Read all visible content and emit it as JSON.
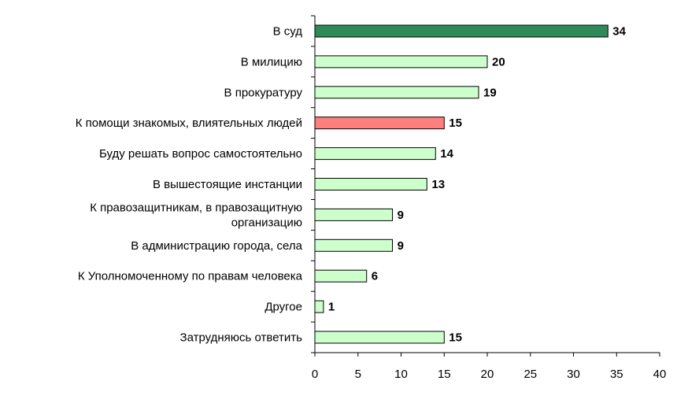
{
  "chart_data": {
    "type": "bar",
    "orientation": "horizontal",
    "title": "",
    "xlabel": "",
    "ylabel": "",
    "categories": [
      [
        "В суд"
      ],
      [
        "В милицию"
      ],
      [
        "В прокуратуру"
      ],
      [
        "К помощи знакомых, влиятельных людей"
      ],
      [
        "Буду решать вопрос самостоятельно"
      ],
      [
        "В вышестоящие инстанции"
      ],
      [
        "К правозащитникам, в правозащитную",
        "организацию"
      ],
      [
        "В администрацию города, села"
      ],
      [
        "К Уполномоченному по правам человека"
      ],
      [
        "Другое"
      ],
      [
        "Затрудняюсь ответить"
      ]
    ],
    "values": [
      34,
      20,
      19,
      15,
      14,
      13,
      9,
      9,
      6,
      1,
      15
    ],
    "bar_colors": [
      "#2e8b57",
      "#ccffcc",
      "#ccffcc",
      "#ff7f7f",
      "#ccffcc",
      "#ccffcc",
      "#ccffcc",
      "#ccffcc",
      "#ccffcc",
      "#ccffcc",
      "#ccffcc"
    ],
    "xlim": [
      0,
      40
    ],
    "xticks": [
      0,
      5,
      10,
      15,
      20,
      25,
      30,
      35,
      40
    ],
    "grid": false,
    "legend": "none"
  }
}
